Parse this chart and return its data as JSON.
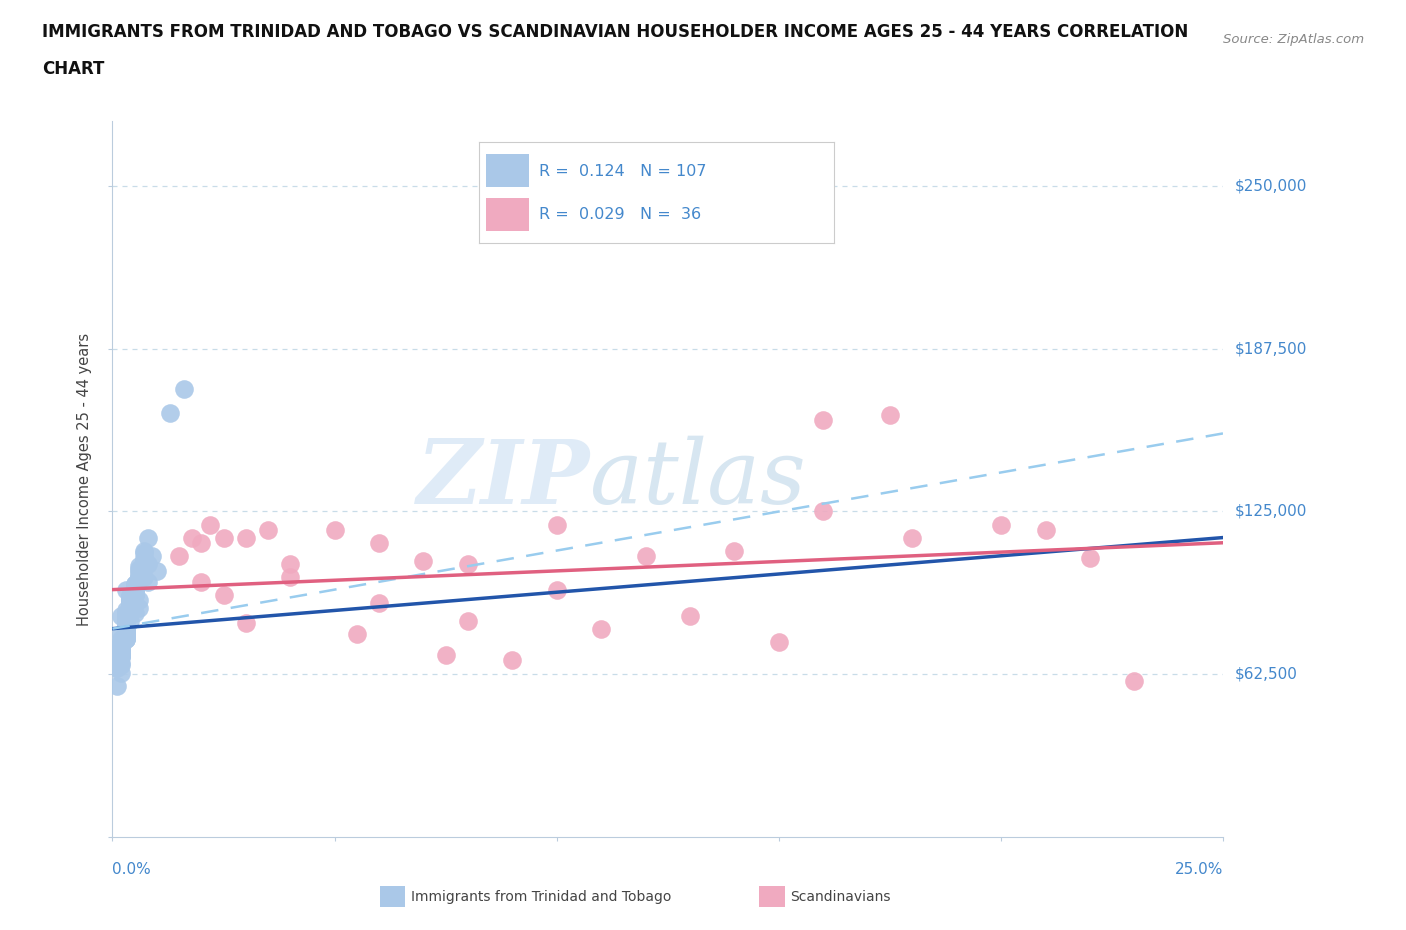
{
  "title_line1": "IMMIGRANTS FROM TRINIDAD AND TOBAGO VS SCANDINAVIAN HOUSEHOLDER INCOME AGES 25 - 44 YEARS CORRELATION",
  "title_line2": "CHART",
  "source": "Source: ZipAtlas.com",
  "ylabel": "Householder Income Ages 25 - 44 years",
  "xlim": [
    0.0,
    0.25
  ],
  "ylim": [
    0,
    275000
  ],
  "color_blue": "#aac8e8",
  "color_pink": "#f0aac0",
  "color_blue_line": "#2255aa",
  "color_pink_line": "#e06080",
  "color_dashed_line": "#99ccee",
  "grid_color": "#c8dce8",
  "y_label_color": "#4488cc",
  "background_color": "#ffffff",
  "legend_r1_text": "R =  0.124   N = 107",
  "legend_r2_text": "R =  0.029   N =  36",
  "ytick_grid": [
    62500,
    125000,
    187500,
    250000
  ],
  "ytick_labels_right": [
    "$62,500",
    "$125,000",
    "$187,500",
    "$250,000"
  ],
  "blue_trend": [
    0.0,
    0.25,
    80000,
    115000
  ],
  "dashed_trend": [
    0.0,
    0.25,
    80000,
    155000
  ],
  "pink_trend": [
    0.0,
    0.25,
    95000,
    113000
  ],
  "blue_x": [
    0.003,
    0.005,
    0.007,
    0.002,
    0.004,
    0.006,
    0.008,
    0.01,
    0.003,
    0.004,
    0.005,
    0.006,
    0.003,
    0.004,
    0.005,
    0.002,
    0.006,
    0.008,
    0.009,
    0.004,
    0.003,
    0.002,
    0.003,
    0.005,
    0.006,
    0.004,
    0.003,
    0.002,
    0.003,
    0.002,
    0.001,
    0.003,
    0.004,
    0.005,
    0.003,
    0.002,
    0.006,
    0.007,
    0.003,
    0.004,
    0.005,
    0.003,
    0.002,
    0.002,
    0.003,
    0.004,
    0.006,
    0.005,
    0.007,
    0.003,
    0.002,
    0.003,
    0.004,
    0.005,
    0.001,
    0.002,
    0.003,
    0.003,
    0.004,
    0.005,
    0.006,
    0.007,
    0.003,
    0.003,
    0.004,
    0.002,
    0.002,
    0.003,
    0.003,
    0.005,
    0.004,
    0.003,
    0.003,
    0.002,
    0.002,
    0.005,
    0.006,
    0.007,
    0.008,
    0.004,
    0.003,
    0.003,
    0.002,
    0.005,
    0.004,
    0.003,
    0.003,
    0.002,
    0.002,
    0.006,
    0.005,
    0.004,
    0.003,
    0.003,
    0.002,
    0.001,
    0.002,
    0.004,
    0.003,
    0.003,
    0.002,
    0.005,
    0.006,
    0.003,
    0.004,
    0.013,
    0.016
  ],
  "blue_y": [
    95000,
    90000,
    100000,
    85000,
    92000,
    88000,
    98000,
    102000,
    87000,
    83000,
    96000,
    91000,
    80000,
    93000,
    86000,
    78000,
    99000,
    105000,
    108000,
    89000,
    84000,
    76000,
    81000,
    97000,
    103000,
    88000,
    82000,
    75000,
    79000,
    72000,
    68000,
    86000,
    91000,
    94000,
    80000,
    74000,
    101000,
    107000,
    83000,
    90000,
    97000,
    78000,
    73000,
    70000,
    85000,
    92000,
    104000,
    96000,
    110000,
    77000,
    71000,
    84000,
    90000,
    95000,
    65000,
    72000,
    76000,
    82000,
    87000,
    93000,
    100000,
    106000,
    79000,
    85000,
    91000,
    69000,
    73000,
    77000,
    83000,
    95000,
    89000,
    84000,
    79000,
    74000,
    67000,
    94000,
    100000,
    109000,
    115000,
    88000,
    82000,
    76000,
    70000,
    96000,
    90000,
    85000,
    78000,
    66000,
    71000,
    102000,
    95000,
    88000,
    82000,
    76000,
    70000,
    58000,
    63000,
    89000,
    83000,
    77000,
    69000,
    93000,
    99000,
    84000,
    90000,
    163000,
    172000
  ],
  "pink_x": [
    0.015,
    0.02,
    0.025,
    0.018,
    0.022,
    0.03,
    0.035,
    0.04,
    0.05,
    0.06,
    0.07,
    0.08,
    0.1,
    0.12,
    0.14,
    0.16,
    0.18,
    0.2,
    0.22,
    0.16,
    0.1,
    0.08,
    0.06,
    0.04,
    0.02,
    0.025,
    0.03,
    0.055,
    0.075,
    0.09,
    0.11,
    0.13,
    0.15,
    0.175,
    0.21,
    0.23
  ],
  "pink_y": [
    108000,
    113000,
    115000,
    115000,
    120000,
    115000,
    118000,
    105000,
    118000,
    113000,
    106000,
    105000,
    120000,
    108000,
    110000,
    125000,
    115000,
    120000,
    107000,
    160000,
    95000,
    83000,
    90000,
    100000,
    98000,
    93000,
    82000,
    78000,
    70000,
    68000,
    80000,
    85000,
    75000,
    162000,
    118000,
    60000
  ]
}
